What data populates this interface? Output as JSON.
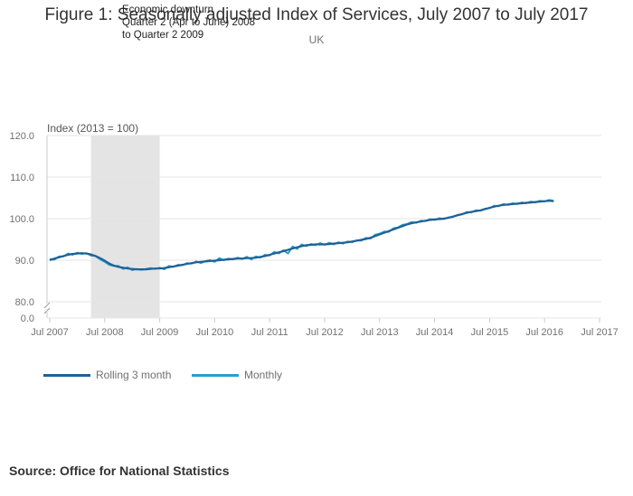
{
  "title": "Figure 1: Seasonally adjusted Index of Services, July 2007 to July 2017",
  "subtitle": "UK",
  "annotation": {
    "lines": [
      "Economic downturn",
      "Quarter 2 (Apr to June) 2008",
      "to Quarter 2 2009"
    ]
  },
  "source": "Source: Office for National Statistics",
  "colors": {
    "rolling": "#206095",
    "monthly": "#27A0CC",
    "shade": "#e4e4e4",
    "grid": "#e6e6e6",
    "axis_text": "#707070"
  },
  "chart_data": {
    "type": "line",
    "title": "Figure 1: Seasonally adjusted Index of Services, July 2007 to July 2017",
    "ylabel": "Index (2013 = 100)",
    "xlabel": "",
    "ylim": [
      80,
      120
    ],
    "y_ticks": [
      "120.0",
      "110.0",
      "100.0",
      "90.0",
      "80.0"
    ],
    "y_tick_values": [
      120,
      110,
      100,
      90,
      80
    ],
    "y_break_label": "0.0",
    "x_tick_labels": [
      "Jul 2007",
      "Jul 2008",
      "Jul 2009",
      "Jul 2010",
      "Jul 2011",
      "Jul 2012",
      "Jul 2013",
      "Jul 2014",
      "Jul 2015",
      "Jul 2016",
      "Jul 2017"
    ],
    "x_start": "2007-07",
    "x_end": "2017-07",
    "shaded_region": {
      "from_month_index": 9,
      "to_month_index": 24
    },
    "grid": true,
    "legend_position": "bottom-left",
    "series": [
      {
        "name": "Rolling 3 month",
        "values": [
          90.0,
          90.4,
          90.7,
          91.0,
          91.3,
          91.5,
          91.6,
          91.7,
          91.6,
          91.4,
          91.0,
          90.5,
          89.9,
          89.2,
          88.7,
          88.4,
          88.2,
          88.0,
          87.9,
          87.8,
          87.8,
          87.8,
          87.9,
          88.0,
          88.0,
          88.1,
          88.3,
          88.5,
          88.7,
          88.9,
          89.1,
          89.3,
          89.5,
          89.6,
          89.7,
          89.8,
          89.9,
          90.0,
          90.1,
          90.2,
          90.3,
          90.4,
          90.4,
          90.5,
          90.5,
          90.6,
          90.8,
          91.0,
          91.3,
          91.6,
          91.9,
          92.2,
          92.5,
          92.8,
          93.1,
          93.4,
          93.6,
          93.7,
          93.8,
          93.8,
          93.8,
          93.9,
          94.0,
          94.1,
          94.2,
          94.3,
          94.5,
          94.7,
          94.9,
          95.1,
          95.4,
          95.8,
          96.2,
          96.6,
          97.0,
          97.4,
          97.8,
          98.2,
          98.6,
          98.9,
          99.1,
          99.3,
          99.5,
          99.7,
          99.8,
          99.9,
          100.0,
          100.2,
          100.5,
          100.8,
          101.1,
          101.4,
          101.6,
          101.8,
          102.0,
          102.3,
          102.6,
          102.9,
          103.1,
          103.3,
          103.4,
          103.5,
          103.6,
          103.7,
          103.8,
          103.9,
          104.0,
          104.1,
          104.2,
          104.3,
          104.2
        ]
      },
      {
        "name": "Monthly",
        "values": [
          90.3,
          90.1,
          90.9,
          90.9,
          91.6,
          91.3,
          91.8,
          91.5,
          91.7,
          91.1,
          91.0,
          90.2,
          89.6,
          88.9,
          88.6,
          88.6,
          87.9,
          88.3,
          87.6,
          87.9,
          87.7,
          87.9,
          88.1,
          87.9,
          88.2,
          87.8,
          88.6,
          88.4,
          88.9,
          88.8,
          89.3,
          89.2,
          89.7,
          89.3,
          89.8,
          90.0,
          89.6,
          90.5,
          90.0,
          90.4,
          90.2,
          90.6,
          90.3,
          90.8,
          90.2,
          90.9,
          90.6,
          91.3,
          91.1,
          92.0,
          91.6,
          92.4,
          91.6,
          93.3,
          92.7,
          93.8,
          93.4,
          93.9,
          93.6,
          94.1,
          93.7,
          94.2,
          93.8,
          94.3,
          94.0,
          94.5,
          94.3,
          94.8,
          94.7,
          95.4,
          95.2,
          96.1,
          96.4,
          96.9,
          96.8,
          97.7,
          97.9,
          98.5,
          98.7,
          99.2,
          99.0,
          99.5,
          99.4,
          99.9,
          99.7,
          100.1,
          99.9,
          100.3,
          100.4,
          100.9,
          101.0,
          101.6,
          101.5,
          102.0,
          101.9,
          102.4,
          102.5,
          103.1,
          103.0,
          103.5,
          103.3,
          103.7,
          103.5,
          103.9,
          103.7,
          104.1,
          103.9,
          104.3,
          104.1,
          104.5,
          104.3
        ]
      }
    ]
  }
}
